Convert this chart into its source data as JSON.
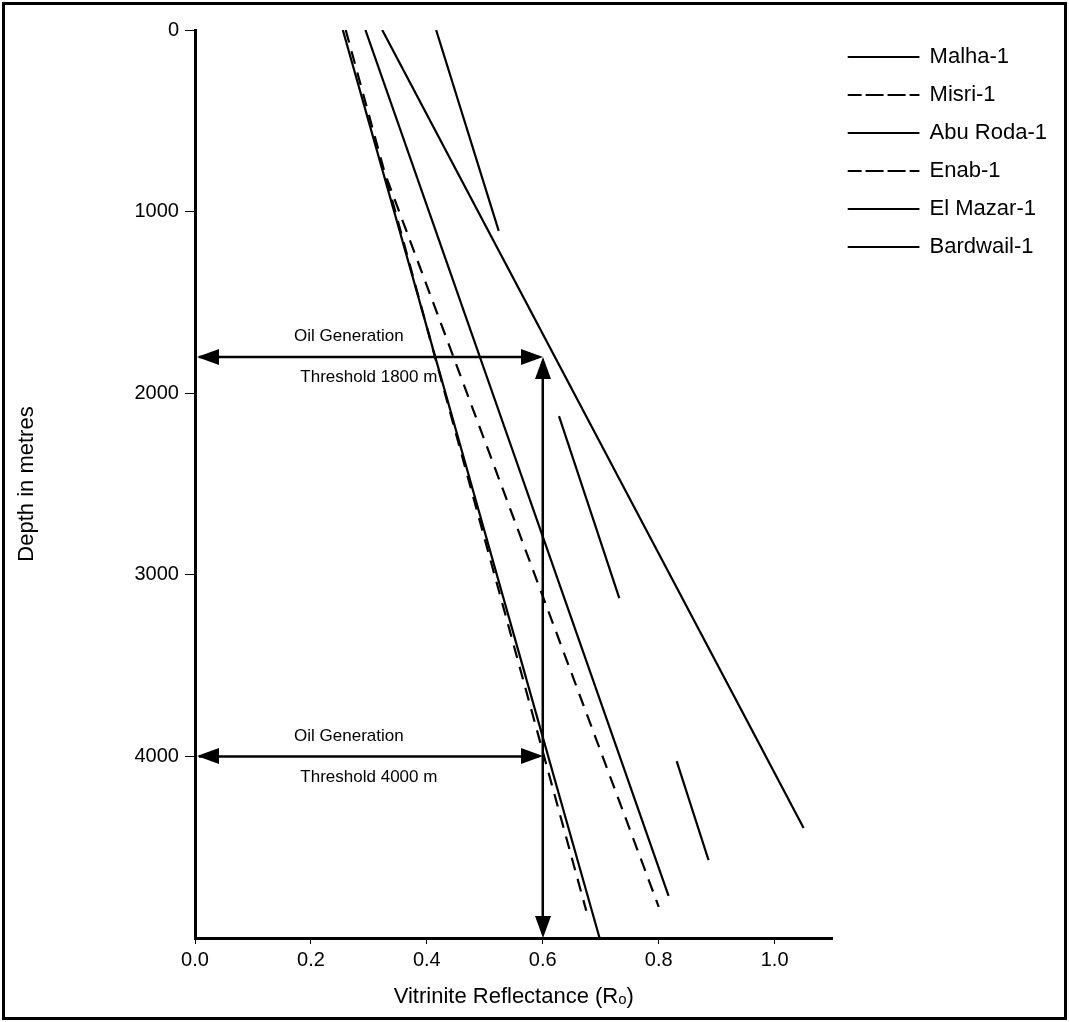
{
  "chart_data": {
    "type": "line",
    "xlabel": "Vitrinite Reflectance (Rₒ)",
    "ylabel": "Depth in metres",
    "xlim": [
      0,
      1.1
    ],
    "xticks": [
      {
        "value": 0,
        "label": "0.0"
      },
      0.2,
      0.4,
      0.6,
      0.8,
      {
        "value": 1,
        "label": "1.0"
      }
    ],
    "ylim": [
      5000,
      0
    ],
    "yticks": [
      0,
      1000,
      2000,
      3000,
      4000
    ],
    "grid": false,
    "legend": "top right",
    "series": [
      {
        "name": "Malha-1",
        "color": "#000000",
        "x": [
          0.323,
          1.05
        ],
        "values": [
          0,
          4394
        ]
      },
      {
        "name": "Misri-1",
        "color": "#000000",
        "line_style": "dashed",
        "x": [
          0.26,
          0.675
        ],
        "values": [
          0,
          4850
        ]
      },
      {
        "name": "Abu Roda-1",
        "color": "#000000",
        "x": [
          0.255,
          0.698
        ],
        "values": [
          0,
          5000
        ]
      },
      {
        "name": "Enab-1",
        "color": "#000000",
        "line_style": "dashed",
        "x": [
          0.331,
          0.8
        ],
        "values": [
          818,
          4828
        ]
      },
      {
        "name": "El Mazar-1",
        "color": "#000000",
        "x": [
          0.294,
          0.817
        ],
        "values": [
          0,
          4768
        ]
      },
      {
        "name": "Bardwail-1",
        "color": "#000000",
        "x": [
          0.416,
          0.524,
          0.576,
          0.628,
          0.732,
          0.78,
          0.831,
          0.886
        ],
        "values": [
          0,
          1106,
          null,
          2126,
          3128,
          null,
          4026,
          4571
        ]
      }
    ],
    "ref_lines": [
      {
        "axis": "y",
        "value": 1800,
        "label": "Oil Generation\nThreshold 1800 m"
      },
      {
        "axis": "y",
        "value": 4000,
        "label": "Oil Generation\nThreshold 4000 m"
      },
      {
        "axis": "x",
        "value": 0.6
      }
    ]
  }
}
